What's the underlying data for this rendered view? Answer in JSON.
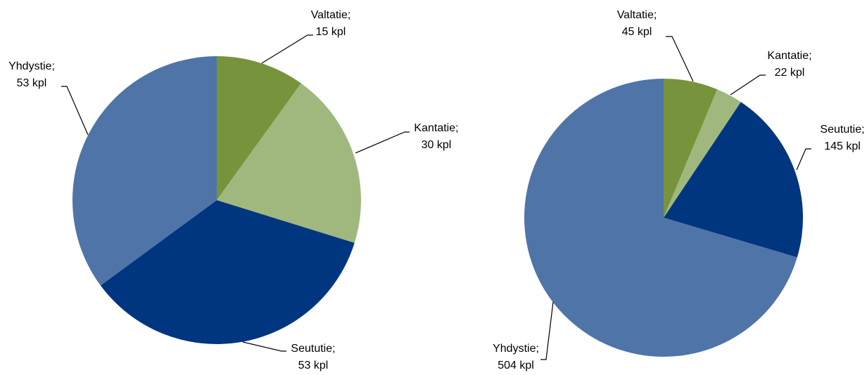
{
  "chart_data": [
    {
      "type": "pie",
      "categories": [
        "Valtatie;",
        "Kantatie;",
        "Seututie;",
        "Yhdystie;"
      ],
      "values": [
        15,
        30,
        53,
        53
      ],
      "value_labels": [
        "15 kpl",
        "30 kpl",
        "53 kpl",
        "53 kpl"
      ],
      "colors": [
        "#77933c",
        "#a0b87e",
        "#003580",
        "#4f74a8"
      ]
    },
    {
      "type": "pie",
      "categories": [
        "Valtatie;",
        "Kantatie;",
        "Seututie;",
        "Yhdystie;"
      ],
      "values": [
        45,
        22,
        145,
        504
      ],
      "value_labels": [
        "45 kpl",
        "22 kpl",
        "145 kpl",
        "504 kpl"
      ],
      "colors": [
        "#77933c",
        "#a0b87e",
        "#003580",
        "#4f74a8"
      ]
    }
  ]
}
